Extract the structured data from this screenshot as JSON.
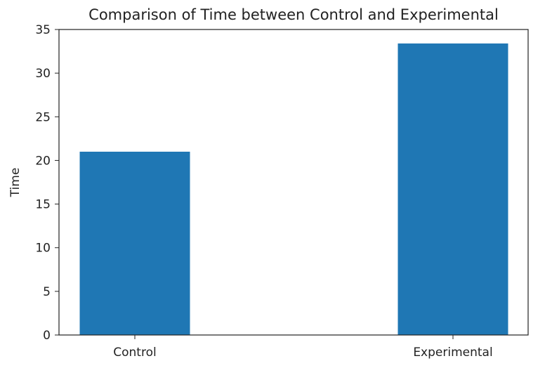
{
  "chart_data": {
    "type": "bar",
    "title": "Comparison of Time between Control and Experimental",
    "xlabel": "",
    "ylabel": "Time",
    "categories": [
      "Control",
      "Experimental"
    ],
    "values": [
      21.0,
      33.4
    ],
    "ylim": [
      0,
      35
    ],
    "yticks": [
      0,
      5,
      10,
      15,
      20,
      25,
      30,
      35
    ],
    "grid": false,
    "bar_color": "#1f77b4"
  }
}
